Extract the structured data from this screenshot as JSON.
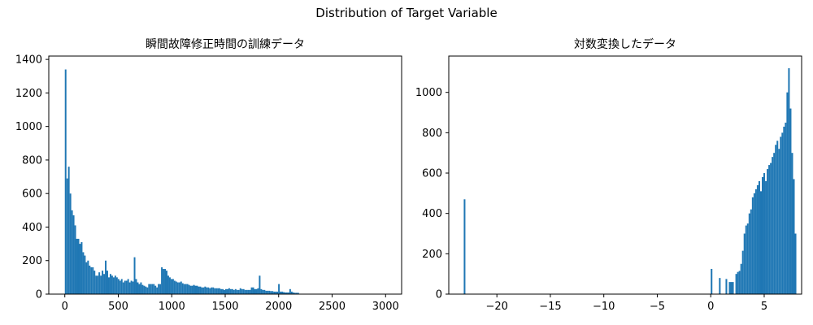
{
  "figure": {
    "suptitle": "Distribution of Target Variable"
  },
  "colors": {
    "bar": "#1f77b4",
    "axis": "#000000"
  },
  "chart_data": [
    {
      "type": "bar",
      "subtype": "histogram",
      "title": "瞬間故障修正時間の訓練データ",
      "xlabel": "",
      "ylabel": "",
      "xlim": [
        -150,
        3150
      ],
      "ylim": [
        0,
        1420
      ],
      "xticks": [
        0,
        500,
        1000,
        1500,
        2000,
        2500,
        3000
      ],
      "yticks": [
        0,
        200,
        400,
        600,
        800,
        1000,
        1200,
        1400
      ],
      "xticklabels": [
        "0",
        "500",
        "1000",
        "1500",
        "2000",
        "2500",
        "3000"
      ],
      "yticklabels": [
        "0",
        "200",
        "400",
        "600",
        "800",
        "1000",
        "1200",
        "1400"
      ],
      "grid": false,
      "legend": "none",
      "bin_start": 0,
      "bin_width": 15,
      "counts": [
        1340,
        690,
        760,
        600,
        500,
        470,
        410,
        330,
        330,
        300,
        310,
        250,
        230,
        190,
        200,
        170,
        160,
        160,
        140,
        110,
        110,
        130,
        110,
        140,
        120,
        200,
        140,
        100,
        120,
        110,
        100,
        110,
        100,
        90,
        80,
        90,
        70,
        80,
        80,
        90,
        70,
        80,
        75,
        220,
        90,
        70,
        60,
        70,
        55,
        50,
        45,
        40,
        60,
        60,
        60,
        60,
        50,
        40,
        60,
        60,
        160,
        150,
        150,
        140,
        110,
        100,
        90,
        90,
        80,
        75,
        70,
        70,
        75,
        65,
        60,
        60,
        60,
        55,
        50,
        50,
        55,
        50,
        50,
        45,
        45,
        40,
        40,
        45,
        40,
        40,
        35,
        40,
        40,
        35,
        35,
        35,
        35,
        30,
        30,
        25,
        30,
        30,
        35,
        30,
        30,
        25,
        30,
        25,
        25,
        35,
        30,
        30,
        25,
        25,
        25,
        25,
        40,
        40,
        30,
        30,
        35,
        110,
        30,
        25,
        25,
        20,
        20,
        20,
        18,
        18,
        15,
        15,
        15,
        60,
        15,
        15,
        12,
        10,
        10,
        10,
        30,
        15,
        10,
        8,
        8,
        8,
        0,
        0,
        0,
        0,
        0,
        0,
        0,
        0,
        0,
        0,
        0,
        0,
        0,
        0,
        0,
        0,
        0,
        0,
        0,
        0,
        0,
        0,
        0,
        0,
        0,
        0,
        0,
        0,
        0,
        0,
        0,
        0,
        0,
        0,
        0,
        0,
        0,
        0,
        0,
        0,
        0,
        0,
        0,
        0,
        0,
        0,
        0,
        0,
        0,
        0,
        0,
        0,
        0,
        0,
        1
      ]
    },
    {
      "type": "bar",
      "subtype": "histogram",
      "title": "対数変換したデータ",
      "xlabel": "",
      "ylabel": "",
      "xlim": [
        -24.5,
        8.5
      ],
      "ylim": [
        0,
        1180
      ],
      "xticks": [
        -20,
        -15,
        -10,
        -5,
        0,
        5
      ],
      "yticks": [
        0,
        200,
        400,
        600,
        800,
        1000
      ],
      "xticklabels": [
        "−20",
        "−15",
        "−10",
        "−5",
        "0",
        "5"
      ],
      "yticklabels": [
        "0",
        "200",
        "400",
        "600",
        "800",
        "1000"
      ],
      "grid": false,
      "legend": "none",
      "bin_start": -23.1,
      "bin_width": 0.154,
      "counts": [
        470,
        0,
        0,
        0,
        0,
        0,
        0,
        0,
        0,
        0,
        0,
        0,
        0,
        0,
        0,
        0,
        0,
        0,
        0,
        0,
        0,
        0,
        0,
        0,
        0,
        0,
        0,
        0,
        0,
        0,
        0,
        0,
        0,
        0,
        0,
        0,
        0,
        0,
        0,
        0,
        0,
        0,
        0,
        0,
        0,
        0,
        0,
        0,
        0,
        0,
        0,
        0,
        0,
        0,
        0,
        0,
        0,
        0,
        0,
        0,
        0,
        0,
        0,
        0,
        0,
        0,
        0,
        0,
        0,
        0,
        0,
        0,
        0,
        0,
        0,
        0,
        0,
        0,
        0,
        0,
        0,
        0,
        0,
        0,
        0,
        0,
        0,
        0,
        0,
        0,
        0,
        0,
        0,
        0,
        0,
        0,
        0,
        0,
        0,
        0,
        0,
        0,
        0,
        0,
        0,
        0,
        0,
        0,
        0,
        0,
        0,
        0,
        0,
        0,
        0,
        0,
        0,
        0,
        0,
        0,
        0,
        0,
        0,
        0,
        0,
        0,
        0,
        0,
        0,
        0,
        0,
        0,
        0,
        0,
        0,
        0,
        0,
        0,
        0,
        0,
        0,
        0,
        0,
        0,
        0,
        0,
        0,
        0,
        0,
        0,
        125,
        0,
        0,
        0,
        0,
        80,
        0,
        0,
        0,
        75,
        0,
        60,
        60,
        60,
        0,
        100,
        110,
        115,
        150,
        215,
        300,
        340,
        350,
        400,
        420,
        480,
        500,
        520,
        540,
        560,
        510,
        580,
        600,
        560,
        620,
        640,
        650,
        680,
        700,
        740,
        760,
        720,
        780,
        800,
        830,
        850,
        1000,
        1120,
        920,
        700,
        570,
        300
      ]
    }
  ]
}
